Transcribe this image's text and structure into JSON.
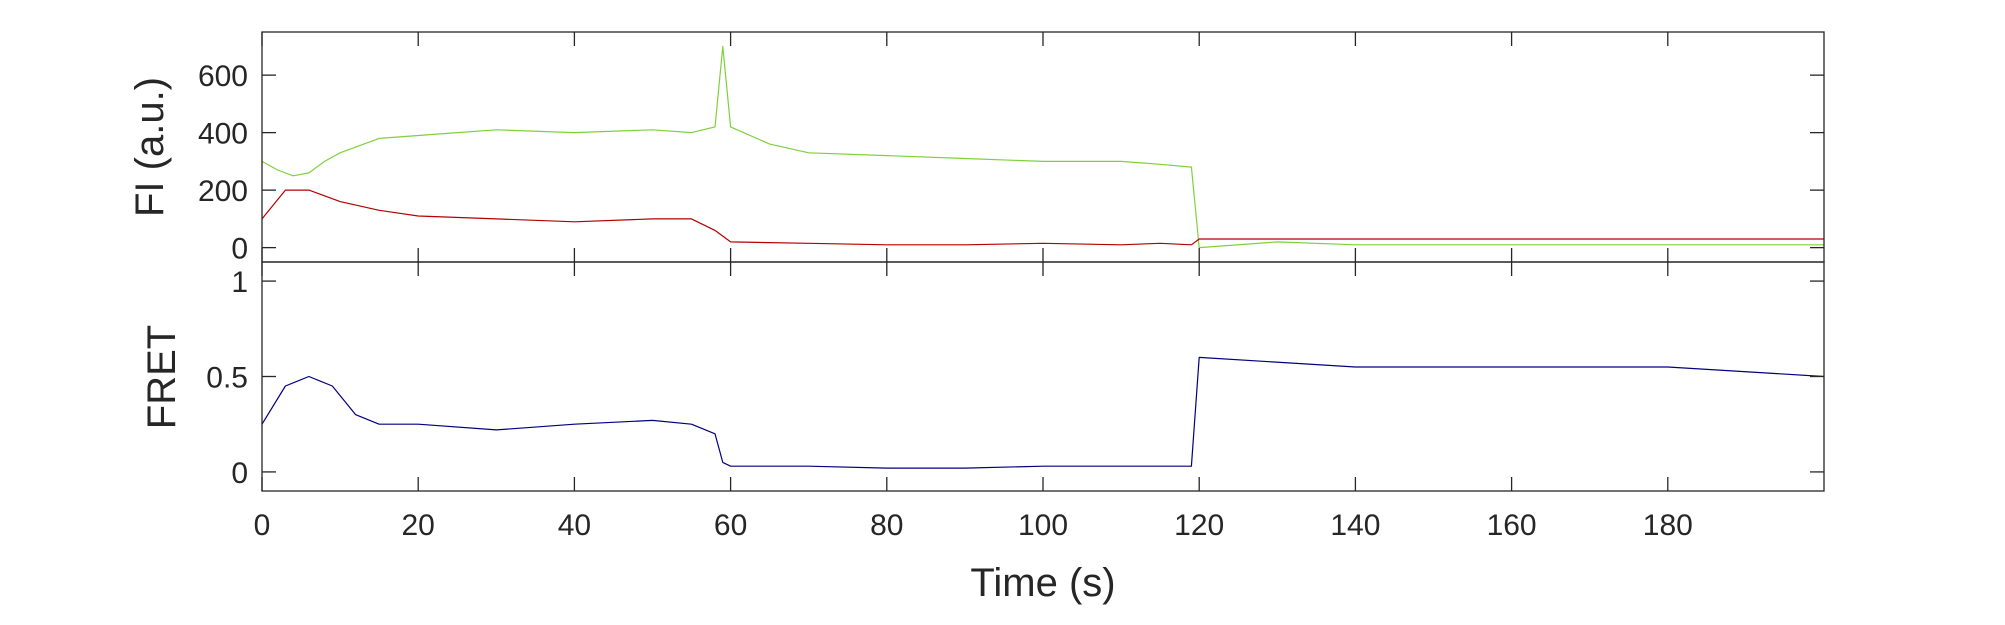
{
  "chart_data": [
    {
      "type": "line",
      "panel": "top",
      "title": "",
      "xlabel": "",
      "ylabel": "FI (a.u.)",
      "xlim": [
        0,
        200
      ],
      "ylim": [
        -50,
        750
      ],
      "yticks": [
        0,
        200,
        400,
        600
      ],
      "ytick_labels": [
        "0",
        "200",
        "400",
        "600"
      ],
      "grid": false,
      "series": [
        {
          "color": "#7fd13b",
          "x": [
            0,
            2,
            4,
            6,
            8,
            10,
            15,
            20,
            25,
            30,
            40,
            50,
            55,
            58,
            59,
            60,
            65,
            70,
            80,
            90,
            100,
            110,
            115,
            119,
            120,
            130,
            140,
            160,
            180,
            200
          ],
          "y": [
            300,
            270,
            250,
            260,
            300,
            330,
            380,
            390,
            400,
            410,
            400,
            410,
            400,
            420,
            700,
            420,
            360,
            330,
            320,
            310,
            300,
            300,
            290,
            280,
            0,
            20,
            10,
            10,
            10,
            10
          ]
        },
        {
          "color": "#b30000",
          "x": [
            0,
            3,
            6,
            10,
            15,
            20,
            30,
            40,
            50,
            55,
            58,
            60,
            70,
            80,
            90,
            100,
            110,
            115,
            119,
            120,
            140,
            160,
            180,
            200
          ],
          "y": [
            100,
            200,
            200,
            160,
            130,
            110,
            100,
            90,
            100,
            100,
            60,
            20,
            15,
            10,
            10,
            15,
            10,
            15,
            10,
            30,
            30,
            30,
            30,
            30
          ]
        }
      ]
    },
    {
      "type": "line",
      "panel": "bottom",
      "title": "",
      "xlabel": "Time (s)",
      "ylabel": "FRET",
      "xlim": [
        0,
        200
      ],
      "ylim": [
        -0.1,
        1.1
      ],
      "yticks": [
        0,
        0.5,
        1
      ],
      "ytick_labels": [
        "0",
        "0.5",
        "1"
      ],
      "xticks": [
        0,
        20,
        40,
        60,
        80,
        100,
        120,
        140,
        160,
        180
      ],
      "xtick_labels": [
        "0",
        "20",
        "40",
        "60",
        "80",
        "100",
        "120",
        "140",
        "160",
        "180"
      ],
      "grid": false,
      "series": [
        {
          "color": "#000080",
          "x": [
            0,
            3,
            6,
            9,
            12,
            15,
            20,
            30,
            40,
            50,
            55,
            58,
            59,
            60,
            70,
            80,
            90,
            100,
            110,
            119,
            120,
            140,
            160,
            180,
            200
          ],
          "y": [
            0.25,
            0.45,
            0.5,
            0.45,
            0.3,
            0.25,
            0.25,
            0.22,
            0.25,
            0.27,
            0.25,
            0.2,
            0.05,
            0.03,
            0.03,
            0.02,
            0.02,
            0.03,
            0.03,
            0.03,
            0.6,
            0.55,
            0.55,
            0.55,
            0.5
          ]
        }
      ]
    }
  ]
}
